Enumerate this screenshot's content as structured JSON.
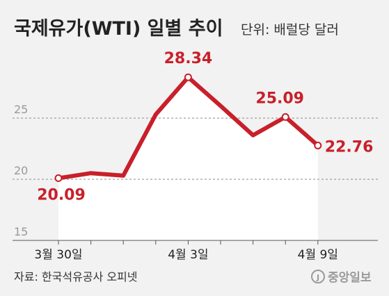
{
  "chart_data": {
    "type": "line",
    "title": "국제유가(WTI) 일별 추이",
    "unit_label": "단위: 배럴당 달러",
    "source": "자료: 한국석유공사 오피넷",
    "publisher": "중앙일보",
    "ylim": [
      15,
      30
    ],
    "y_ticks": [
      "15",
      "20",
      "25"
    ],
    "x_labels": [
      "3월 30일",
      "4월 3일",
      "4월 9일"
    ],
    "x_label_index": [
      0,
      4,
      8
    ],
    "grid": true,
    "line_color": "#c8202a",
    "series": [
      {
        "values": [
          20.09,
          20.5,
          20.3,
          25.3,
          28.34,
          26.0,
          23.6,
          25.09,
          22.76
        ]
      }
    ],
    "labeled_points": [
      {
        "index": 0,
        "text": "20.09"
      },
      {
        "index": 4,
        "text": "28.34"
      },
      {
        "index": 7,
        "text": "25.09"
      },
      {
        "index": 8,
        "text": "22.76"
      }
    ]
  }
}
